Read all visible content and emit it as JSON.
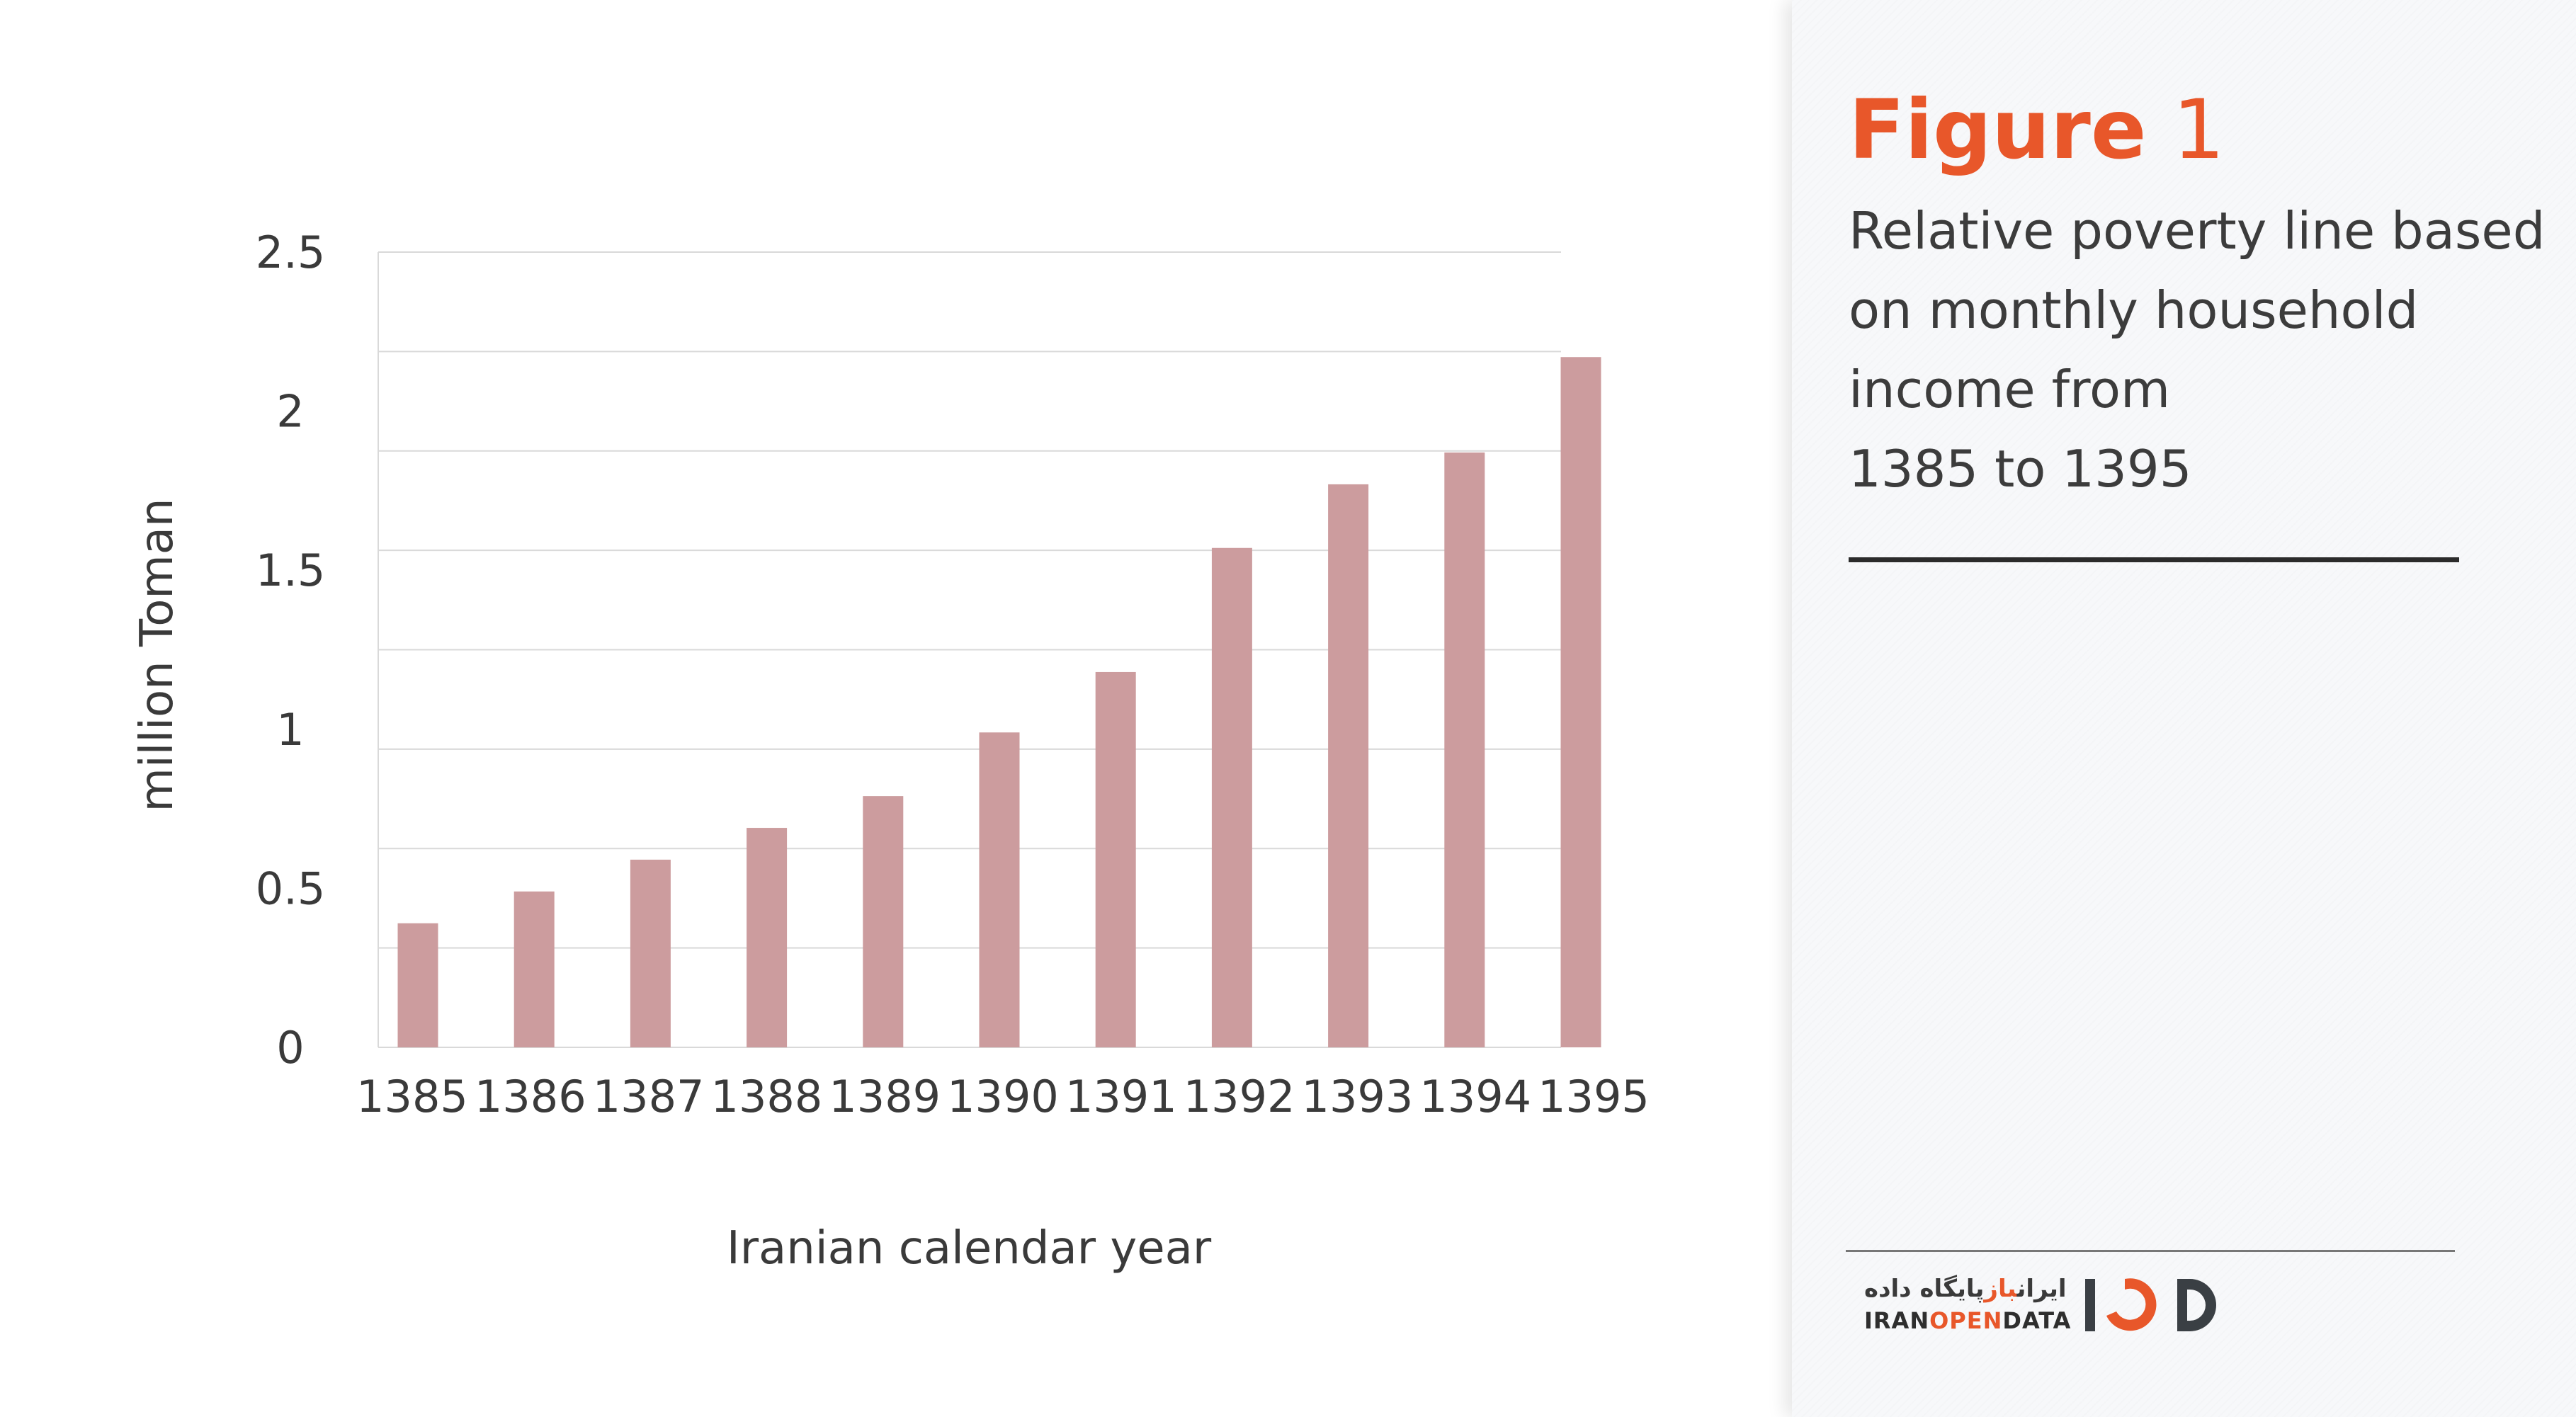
{
  "colors": {
    "bar": "#cc9c9e",
    "accent": "#e8572a",
    "grid": "#d9d9d9",
    "text": "#3a3a3a"
  },
  "chart_data": {
    "type": "bar",
    "categories": [
      "1385",
      "1386",
      "1387",
      "1388",
      "1389",
      "1390",
      "1391",
      "1392",
      "1393",
      "1394",
      "1395"
    ],
    "values": [
      0.39,
      0.49,
      0.59,
      0.69,
      0.79,
      0.99,
      1.18,
      1.57,
      1.77,
      1.87,
      2.17
    ],
    "title": "",
    "xlabel": "Iranian calendar year",
    "ylabel": "million Toman",
    "ylim": [
      0,
      2.5
    ],
    "yticks": [
      "0",
      "0.5",
      "1",
      "1.5",
      "2",
      "2.5"
    ],
    "grid_step": 0.3125,
    "grid": true,
    "legend": "none"
  },
  "panel": {
    "figure_word": "Figure",
    "figure_number": "1",
    "description_lines": [
      "Relative poverty line based",
      "on monthly household",
      "income from",
      "1385 to 1395"
    ]
  },
  "logo": {
    "persian_prefix": "پایگاه داده ",
    "persian_accent": "باز",
    "persian_suffix": " ایران",
    "latin_prefix": "IRAN",
    "latin_accent": "OPEN",
    "latin_suffix": "DATA",
    "mark_icon": "iod-logo-mark-icon"
  }
}
